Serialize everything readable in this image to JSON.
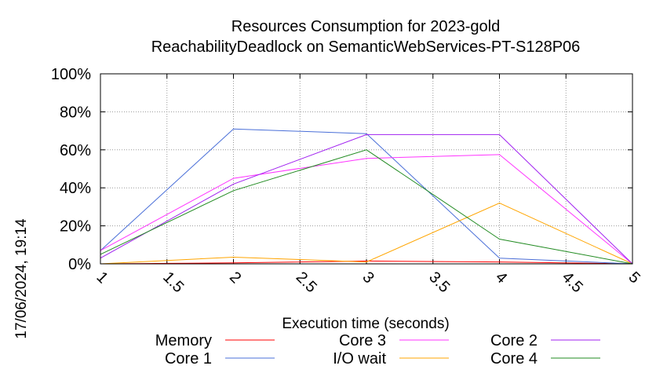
{
  "chart_data": {
    "type": "line",
    "title": "Resources Consumption for 2023-gold",
    "subtitle": "ReachabilityDeadlock on SemanticWebServices-PT-S128P06",
    "xlabel": "Execution time (seconds)",
    "ylabel": "",
    "xlim": [
      1,
      5
    ],
    "ylim": [
      0,
      100
    ],
    "x_ticks": [
      "1",
      "1.5",
      "2",
      "2.5",
      "3",
      "3.5",
      "4",
      "4.5",
      "5"
    ],
    "y_ticks": [
      "0%",
      "20%",
      "40%",
      "60%",
      "80%",
      "100%"
    ],
    "grid": true,
    "legend_position": "bottom",
    "timestamp": "17/06/2024, 19:14",
    "series": [
      {
        "name": "Memory",
        "color": "#ff0000",
        "x": [
          1,
          2,
          3,
          4,
          5
        ],
        "y": [
          0,
          0.5,
          1.5,
          1,
          0
        ]
      },
      {
        "name": "Core 1",
        "color": "#4a6fd8",
        "x": [
          1,
          2,
          3,
          4,
          5
        ],
        "y": [
          7,
          71,
          68.5,
          3,
          0
        ]
      },
      {
        "name": "Core 3",
        "color": "#ff33ff",
        "x": [
          1,
          2,
          3,
          4,
          5
        ],
        "y": [
          7,
          45,
          55.5,
          57.5,
          0
        ]
      },
      {
        "name": "I/O wait",
        "color": "#ffa500",
        "x": [
          1,
          2,
          3,
          4,
          5
        ],
        "y": [
          0,
          3.5,
          1,
          32,
          0
        ]
      },
      {
        "name": "Core 2",
        "color": "#a020f0",
        "x": [
          1,
          2,
          3,
          4,
          5
        ],
        "y": [
          3,
          42,
          68,
          68,
          0
        ]
      },
      {
        "name": "Core 4",
        "color": "#228b22",
        "x": [
          1,
          2,
          3,
          4,
          5
        ],
        "y": [
          5,
          38.5,
          60,
          13,
          0
        ]
      }
    ]
  }
}
